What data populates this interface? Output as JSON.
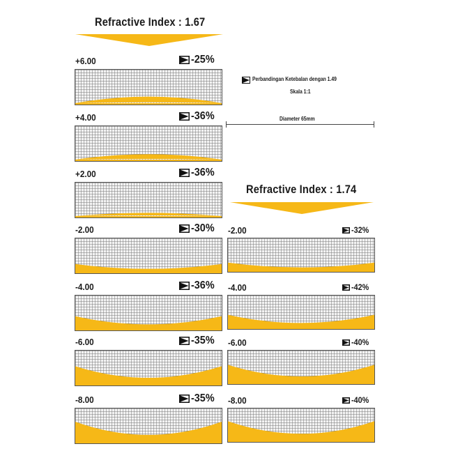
{
  "legend": {
    "text": "Perbandingan Ketebalan dengan 1.49",
    "scale": "Skala 1:1",
    "diameter": "Diameter 65mm"
  },
  "colors": {
    "accent": "#F6B817",
    "grid": "#777777",
    "text": "#1a1a1a"
  },
  "columns": [
    {
      "title": "Refractive Index : 1.67",
      "lenses": [
        {
          "power": "+6.00",
          "reduction": "-25%"
        },
        {
          "power": "+4.00",
          "reduction": "-36%"
        },
        {
          "power": "+2.00",
          "reduction": "-36%"
        },
        {
          "power": "-2.00",
          "reduction": "-30%"
        },
        {
          "power": "-4.00",
          "reduction": "-36%"
        },
        {
          "power": "-6.00",
          "reduction": "-35%"
        },
        {
          "power": "-8.00",
          "reduction": "-35%"
        }
      ]
    },
    {
      "title": "Refractive Index : 1.74",
      "lenses": [
        {
          "power": "-2.00",
          "reduction": "-32%"
        },
        {
          "power": "-4.00",
          "reduction": "-42%"
        },
        {
          "power": "-6.00",
          "reduction": "-40%"
        },
        {
          "power": "-8.00",
          "reduction": "-40%"
        }
      ]
    }
  ]
}
